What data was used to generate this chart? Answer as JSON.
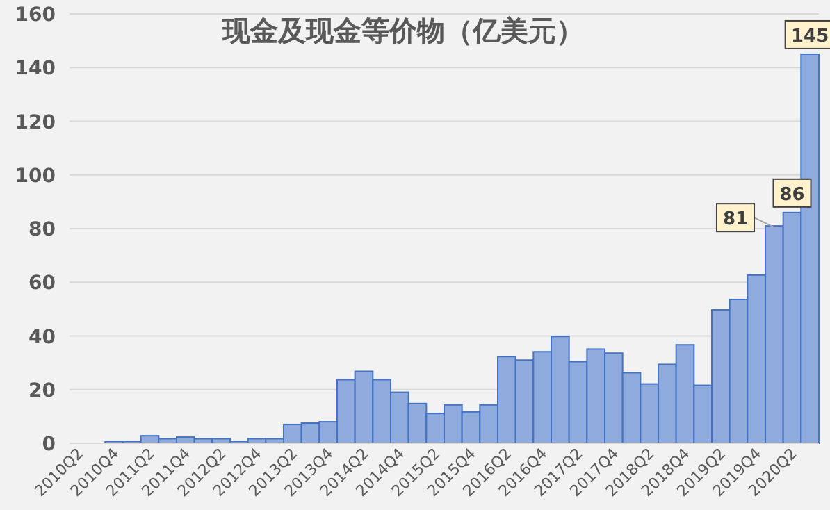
{
  "chart_data": {
    "type": "bar",
    "title": "现金及现金等价物（亿美元）",
    "categories": [
      "2010Q2",
      null,
      "2010Q4",
      null,
      "2011Q2",
      null,
      "2011Q4",
      null,
      "2012Q2",
      null,
      "2012Q4",
      null,
      "2013Q2",
      null,
      "2013Q4",
      null,
      "2014Q2",
      null,
      "2014Q4",
      null,
      "2015Q2",
      null,
      "2015Q4",
      null,
      "2016Q2",
      null,
      "2016Q4",
      null,
      "2017Q2",
      null,
      "2017Q4",
      null,
      "2018Q2",
      null,
      "2018Q4",
      null,
      "2019Q2",
      null,
      "2019Q4",
      null,
      "2020Q2",
      null
    ],
    "values": [
      0,
      0,
      0.7,
      0.7,
      2.8,
      1.7,
      2.3,
      1.7,
      1.7,
      0.7,
      1.7,
      1.7,
      7,
      7.5,
      8,
      23.7,
      26.8,
      23.7,
      19,
      14.8,
      11.1,
      14.3,
      11.7,
      14.3,
      32.3,
      31,
      34.1,
      39.8,
      30.4,
      35.1,
      33.6,
      26.3,
      22.1,
      29.4,
      36.7,
      21.6,
      49.7,
      53.6,
      62.7,
      81,
      86,
      145
    ],
    "value_labels": [
      null,
      null,
      null,
      null,
      null,
      null,
      null,
      null,
      null,
      null,
      null,
      null,
      null,
      null,
      null,
      null,
      null,
      null,
      null,
      null,
      null,
      null,
      null,
      null,
      null,
      null,
      null,
      null,
      null,
      null,
      null,
      null,
      null,
      null,
      null,
      null,
      null,
      null,
      null,
      "81",
      "86",
      "145"
    ],
    "color": "#8faadc",
    "ylim": [
      0,
      160
    ],
    "yticks": [
      0,
      20,
      40,
      60,
      80,
      100,
      120,
      140,
      160
    ],
    "grid": "y"
  }
}
